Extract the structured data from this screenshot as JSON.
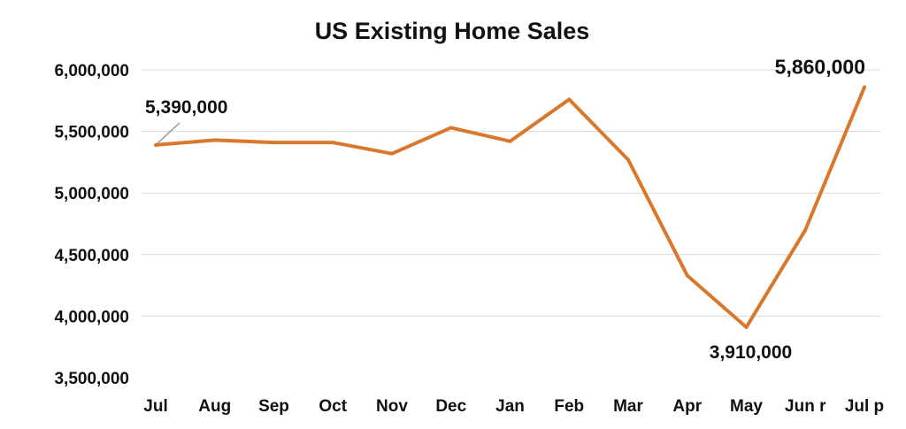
{
  "chart_data": {
    "type": "line",
    "title": "US Existing Home Sales",
    "xlabel": "",
    "ylabel": "",
    "categories": [
      "Jul",
      "Aug",
      "Sep",
      "Oct",
      "Nov",
      "Dec",
      "Jan",
      "Feb",
      "Mar",
      "Apr",
      "May",
      "Jun r",
      "Jul p"
    ],
    "series": [
      {
        "values": [
          5390000,
          5430000,
          5410000,
          5410000,
          5320000,
          5530000,
          5420000,
          5760000,
          5270000,
          4330000,
          3910000,
          4700000,
          5860000
        ],
        "color": "#D9782D"
      }
    ],
    "ylim": [
      3500000,
      6000000
    ],
    "yticks": [
      3500000,
      4000000,
      4500000,
      5000000,
      5500000,
      6000000
    ],
    "ytick_labels": [
      "3,500,000",
      "4,000,000",
      "4,500,000",
      "5,000,000",
      "5,500,000",
      "6,000,000"
    ],
    "grid": true,
    "annotations": [
      {
        "text": "5,390,000",
        "index": 0,
        "placement": "above-right",
        "leader_line": true
      },
      {
        "text": "3,910,000",
        "index": 10,
        "placement": "below"
      },
      {
        "text": "5,860,000",
        "index": 12,
        "placement": "above-left"
      }
    ]
  }
}
